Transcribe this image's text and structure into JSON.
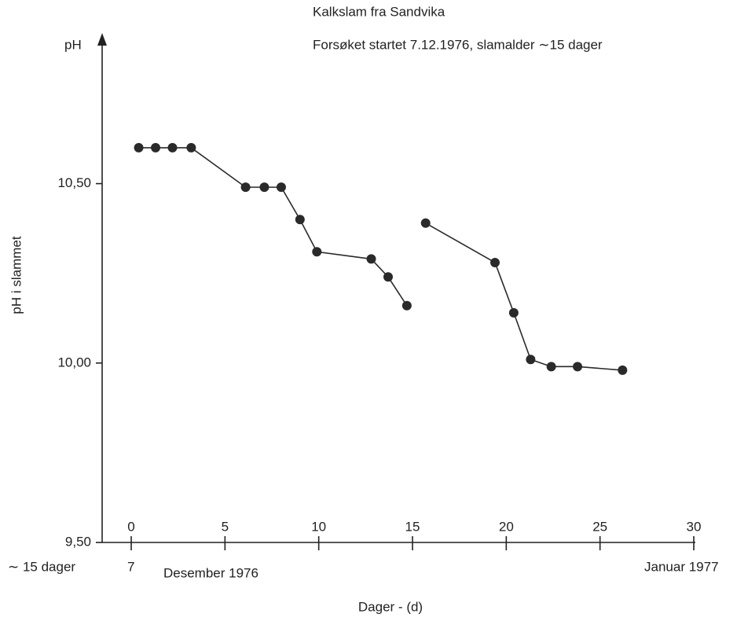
{
  "chart_data": {
    "type": "line",
    "title": "Kalkslam fra Sandvika",
    "subtitle": "Forsøket startet 7.12.1976, slamalder ∼15 dager",
    "y_unit_label": "pH",
    "y_axis_label": "pH i slammet",
    "x_axis_label": "Dager - (d)",
    "x_annotations": [
      "∼ 15 dager",
      "7",
      "Desember 1976",
      "Januar 1977"
    ],
    "x": [
      0.4,
      1.3,
      2.2,
      3.2,
      6.1,
      7.1,
      8.0,
      9.0,
      9.9,
      12.8,
      13.7,
      14.7,
      null,
      15.7,
      19.4,
      20.4,
      21.3,
      22.4,
      23.8,
      26.2
    ],
    "values": [
      10.6,
      10.6,
      10.6,
      10.6,
      10.49,
      10.49,
      10.49,
      10.4,
      10.31,
      10.29,
      10.24,
      10.16,
      null,
      10.39,
      10.28,
      10.14,
      10.01,
      9.99,
      9.99,
      9.98
    ],
    "color": "#2a2a2a",
    "xlim": [
      0,
      30
    ],
    "xticks": [
      0,
      5,
      10,
      15,
      20,
      25,
      30
    ],
    "ylim": [
      9.5,
      10.9
    ],
    "yticks": [
      {
        "value": 9.5,
        "label": "9,50"
      },
      {
        "value": 10,
        "label": "10,00"
      },
      {
        "value": 10.5,
        "label": "10,50"
      }
    ],
    "grid": false
  }
}
